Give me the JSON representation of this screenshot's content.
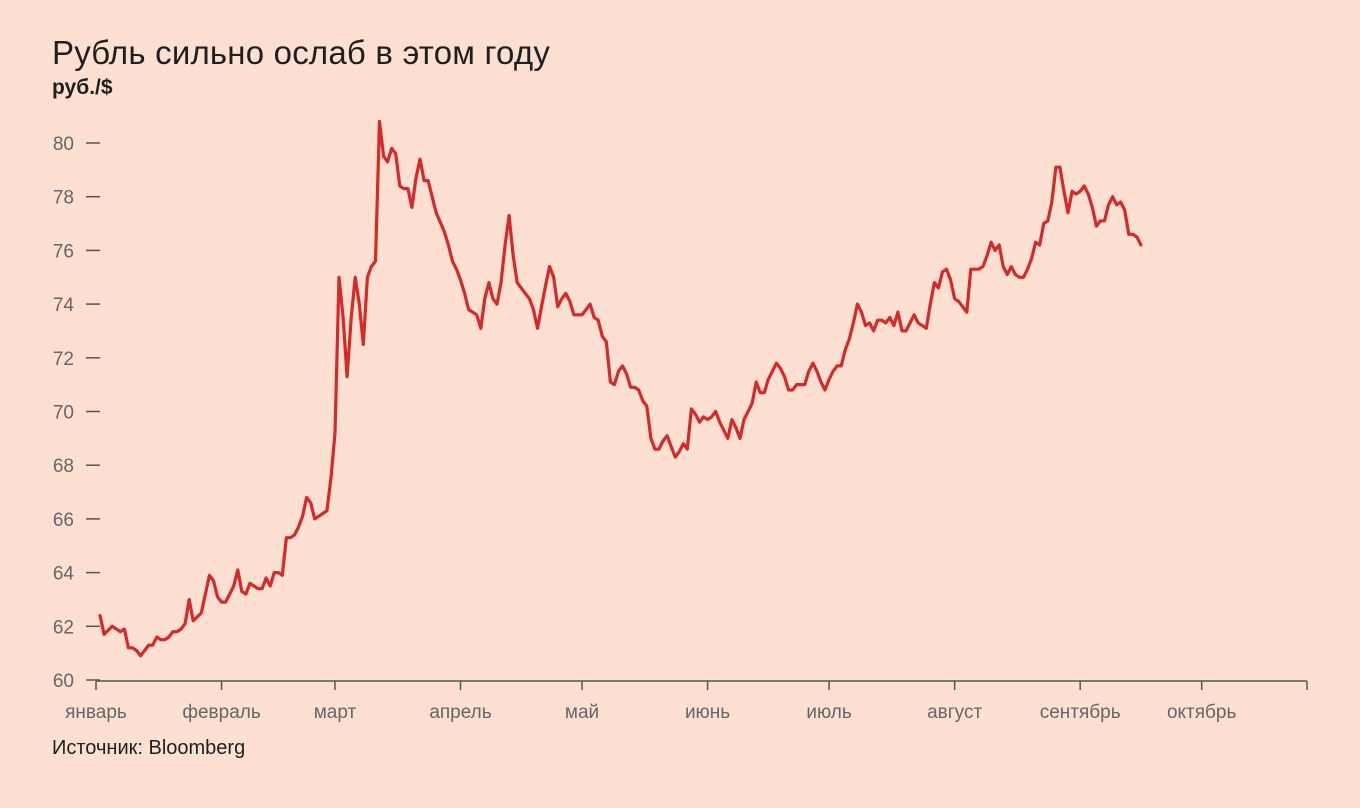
{
  "title": "Рубль сильно ослаб в этом году",
  "unit_label": "руб./$",
  "source": "Источник: Bloomberg",
  "colors": {
    "background": "#fde0d1",
    "line": "#d42a2a",
    "axis": "#555555",
    "text": "#1f1f1f"
  },
  "chart_data": {
    "type": "line",
    "title": "Рубль сильно ослаб в этом году",
    "ylabel": "руб./$",
    "xlabel": "",
    "ylim": [
      60,
      81
    ],
    "yticks": [
      60,
      62,
      64,
      66,
      68,
      70,
      72,
      74,
      76,
      78,
      80
    ],
    "xlim": [
      1,
      300
    ],
    "xticks": [
      {
        "label": "январь",
        "day": 1
      },
      {
        "label": "февраль",
        "day": 32
      },
      {
        "label": "март",
        "day": 60
      },
      {
        "label": "апрель",
        "day": 91
      },
      {
        "label": "май",
        "day": 121
      },
      {
        "label": "июнь",
        "day": 152
      },
      {
        "label": "июль",
        "day": 182
      },
      {
        "label": "август",
        "day": 213
      },
      {
        "label": "сентябрь",
        "day": 244
      },
      {
        "label": "октябрь",
        "day": 274
      }
    ],
    "grid": false,
    "series": [
      {
        "color": "#d42a2a",
        "points": [
          [
            2,
            62.4
          ],
          [
            3,
            61.7
          ],
          [
            5,
            62.0
          ],
          [
            7,
            61.8
          ],
          [
            8,
            61.9
          ],
          [
            9,
            61.2
          ],
          [
            10,
            61.2
          ],
          [
            11,
            61.1
          ],
          [
            12,
            60.9
          ],
          [
            13,
            61.1
          ],
          [
            14,
            61.3
          ],
          [
            15,
            61.3
          ],
          [
            16,
            61.6
          ],
          [
            17,
            61.5
          ],
          [
            18,
            61.5
          ],
          [
            19,
            61.6
          ],
          [
            20,
            61.8
          ],
          [
            21,
            61.8
          ],
          [
            22,
            61.9
          ],
          [
            23,
            62.1
          ],
          [
            24,
            63.0
          ],
          [
            25,
            62.2
          ],
          [
            27,
            62.5
          ],
          [
            28,
            63.2
          ],
          [
            29,
            63.9
          ],
          [
            30,
            63.7
          ],
          [
            31,
            63.1
          ],
          [
            32,
            62.9
          ],
          [
            33,
            62.9
          ],
          [
            34,
            63.2
          ],
          [
            35,
            63.5
          ],
          [
            36,
            64.1
          ],
          [
            37,
            63.3
          ],
          [
            38,
            63.2
          ],
          [
            39,
            63.6
          ],
          [
            40,
            63.5
          ],
          [
            41,
            63.4
          ],
          [
            42,
            63.4
          ],
          [
            43,
            63.8
          ],
          [
            44,
            63.5
          ],
          [
            45,
            64.0
          ],
          [
            46,
            64.0
          ],
          [
            47,
            63.9
          ],
          [
            48,
            65.3
          ],
          [
            49,
            65.3
          ],
          [
            50,
            65.4
          ],
          [
            51,
            65.7
          ],
          [
            52,
            66.1
          ],
          [
            53,
            66.8
          ],
          [
            54,
            66.6
          ],
          [
            55,
            66.0
          ],
          [
            56,
            66.1
          ],
          [
            57,
            66.2
          ],
          [
            58,
            66.3
          ],
          [
            59,
            67.5
          ],
          [
            60,
            69.2
          ],
          [
            61,
            75.0
          ],
          [
            62,
            73.5
          ],
          [
            63,
            71.3
          ],
          [
            64,
            73.5
          ],
          [
            65,
            75.0
          ],
          [
            66,
            74.0
          ],
          [
            67,
            72.5
          ],
          [
            68,
            75.0
          ],
          [
            69,
            75.4
          ],
          [
            70,
            75.6
          ],
          [
            71,
            80.8
          ],
          [
            72,
            79.5
          ],
          [
            73,
            79.3
          ],
          [
            74,
            79.8
          ],
          [
            75,
            79.6
          ],
          [
            76,
            78.4
          ],
          [
            77,
            78.3
          ],
          [
            78,
            78.3
          ],
          [
            79,
            77.6
          ],
          [
            80,
            78.7
          ],
          [
            81,
            79.4
          ],
          [
            82,
            78.6
          ],
          [
            83,
            78.6
          ],
          [
            85,
            77.4
          ],
          [
            87,
            76.7
          ],
          [
            88,
            76.2
          ],
          [
            89,
            75.6
          ],
          [
            90,
            75.3
          ],
          [
            91,
            74.9
          ],
          [
            92,
            74.4
          ],
          [
            93,
            73.8
          ],
          [
            94,
            73.7
          ],
          [
            95,
            73.6
          ],
          [
            96,
            73.1
          ],
          [
            97,
            74.2
          ],
          [
            98,
            74.8
          ],
          [
            99,
            74.2
          ],
          [
            100,
            74.0
          ],
          [
            101,
            74.8
          ],
          [
            102,
            76.2
          ],
          [
            103,
            77.3
          ],
          [
            104,
            75.8
          ],
          [
            105,
            74.8
          ],
          [
            106,
            74.6
          ],
          [
            107,
            74.4
          ],
          [
            108,
            74.2
          ],
          [
            109,
            73.8
          ],
          [
            110,
            73.1
          ],
          [
            111,
            73.9
          ],
          [
            112,
            74.7
          ],
          [
            113,
            75.4
          ],
          [
            114,
            75.0
          ],
          [
            115,
            73.9
          ],
          [
            116,
            74.2
          ],
          [
            117,
            74.4
          ],
          [
            118,
            74.1
          ],
          [
            119,
            73.6
          ],
          [
            120,
            73.6
          ],
          [
            121,
            73.6
          ],
          [
            122,
            73.8
          ],
          [
            123,
            74.0
          ],
          [
            124,
            73.5
          ],
          [
            125,
            73.4
          ],
          [
            126,
            72.8
          ],
          [
            127,
            72.6
          ],
          [
            128,
            71.1
          ],
          [
            129,
            71.0
          ],
          [
            130,
            71.5
          ],
          [
            131,
            71.7
          ],
          [
            132,
            71.4
          ],
          [
            133,
            70.9
          ],
          [
            134,
            70.9
          ],
          [
            135,
            70.8
          ],
          [
            136,
            70.4
          ],
          [
            137,
            70.2
          ],
          [
            138,
            69.0
          ],
          [
            139,
            68.6
          ],
          [
            140,
            68.6
          ],
          [
            141,
            68.9
          ],
          [
            142,
            69.1
          ],
          [
            143,
            68.7
          ],
          [
            144,
            68.3
          ],
          [
            145,
            68.5
          ],
          [
            146,
            68.8
          ],
          [
            147,
            68.6
          ],
          [
            148,
            70.1
          ],
          [
            149,
            69.9
          ],
          [
            150,
            69.6
          ],
          [
            151,
            69.8
          ],
          [
            152,
            69.7
          ],
          [
            153,
            69.8
          ],
          [
            154,
            70.0
          ],
          [
            155,
            69.6
          ],
          [
            156,
            69.3
          ],
          [
            157,
            69.0
          ],
          [
            158,
            69.7
          ],
          [
            159,
            69.4
          ],
          [
            160,
            69.0
          ],
          [
            161,
            69.7
          ],
          [
            162,
            70.0
          ],
          [
            163,
            70.3
          ],
          [
            164,
            71.1
          ],
          [
            165,
            70.7
          ],
          [
            166,
            70.7
          ],
          [
            167,
            71.2
          ],
          [
            168,
            71.5
          ],
          [
            169,
            71.8
          ],
          [
            170,
            71.6
          ],
          [
            171,
            71.3
          ],
          [
            172,
            70.8
          ],
          [
            173,
            70.8
          ],
          [
            174,
            71.0
          ],
          [
            175,
            71.0
          ],
          [
            176,
            71.0
          ],
          [
            177,
            71.5
          ],
          [
            178,
            71.8
          ],
          [
            179,
            71.5
          ],
          [
            180,
            71.1
          ],
          [
            181,
            70.8
          ],
          [
            182,
            71.2
          ],
          [
            183,
            71.5
          ],
          [
            184,
            71.7
          ],
          [
            185,
            71.7
          ],
          [
            186,
            72.3
          ],
          [
            187,
            72.7
          ],
          [
            188,
            73.3
          ],
          [
            189,
            74.0
          ],
          [
            190,
            73.7
          ],
          [
            191,
            73.2
          ],
          [
            192,
            73.3
          ],
          [
            193,
            73.0
          ],
          [
            194,
            73.4
          ],
          [
            195,
            73.4
          ],
          [
            196,
            73.3
          ],
          [
            197,
            73.5
          ],
          [
            198,
            73.2
          ],
          [
            199,
            73.7
          ],
          [
            200,
            73.0
          ],
          [
            201,
            73.0
          ],
          [
            202,
            73.3
          ],
          [
            203,
            73.6
          ],
          [
            204,
            73.3
          ],
          [
            205,
            73.2
          ],
          [
            206,
            73.1
          ],
          [
            207,
            74.0
          ],
          [
            208,
            74.8
          ],
          [
            209,
            74.6
          ],
          [
            210,
            75.2
          ],
          [
            211,
            75.3
          ],
          [
            212,
            74.9
          ],
          [
            213,
            74.2
          ],
          [
            214,
            74.1
          ],
          [
            215,
            73.9
          ],
          [
            216,
            73.7
          ],
          [
            217,
            75.3
          ],
          [
            218,
            75.3
          ],
          [
            219,
            75.3
          ],
          [
            220,
            75.4
          ],
          [
            221,
            75.8
          ],
          [
            222,
            76.3
          ],
          [
            223,
            76.0
          ],
          [
            224,
            76.2
          ],
          [
            225,
            75.4
          ],
          [
            226,
            75.1
          ],
          [
            227,
            75.4
          ],
          [
            228,
            75.1
          ],
          [
            229,
            75.0
          ],
          [
            230,
            75.0
          ],
          [
            231,
            75.3
          ],
          [
            232,
            75.7
          ],
          [
            233,
            76.3
          ],
          [
            234,
            76.2
          ],
          [
            235,
            77.0
          ],
          [
            236,
            77.1
          ],
          [
            237,
            77.8
          ],
          [
            238,
            79.1
          ],
          [
            239,
            79.1
          ],
          [
            240,
            78.2
          ],
          [
            241,
            77.4
          ],
          [
            242,
            78.2
          ],
          [
            243,
            78.1
          ],
          [
            244,
            78.2
          ],
          [
            245,
            78.4
          ],
          [
            246,
            78.1
          ],
          [
            247,
            77.6
          ],
          [
            248,
            76.9
          ],
          [
            249,
            77.1
          ],
          [
            250,
            77.1
          ],
          [
            251,
            77.7
          ],
          [
            252,
            78.0
          ],
          [
            253,
            77.7
          ],
          [
            254,
            77.8
          ],
          [
            255,
            77.5
          ],
          [
            256,
            76.6
          ],
          [
            257,
            76.6
          ],
          [
            258,
            76.5
          ],
          [
            259,
            76.2
          ]
        ]
      }
    ]
  }
}
